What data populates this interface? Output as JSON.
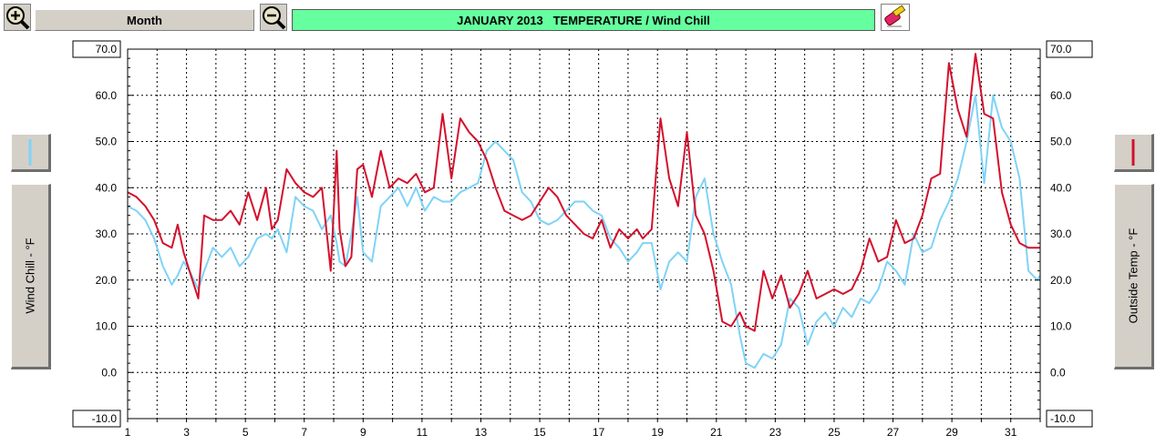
{
  "toolbar": {
    "zoom_in_icon": "zoom-in-magnifier-plus",
    "zoom_out_icon": "zoom-out-magnifier-minus",
    "period_label": "Month",
    "title": "JANUARY 2013   TEMPERATURE / Wind Chill",
    "title_bg": "#66ff9f",
    "tool_icon": "eraser-pencil-icon"
  },
  "left_axis": {
    "label": "Wind Chill - °F",
    "color": "#7fd3f7"
  },
  "right_axis": {
    "label": "Outside Temp - °F",
    "color": "#d4102c"
  },
  "chart_data": {
    "type": "line",
    "title": "JANUARY 2013   TEMPERATURE / Wind Chill",
    "xlabel": "",
    "ylabel_left": "Wind Chill - °F",
    "ylabel_right": "Outside Temp - °F",
    "xlim": [
      1,
      32
    ],
    "ylim": [
      -10,
      70
    ],
    "x_ticks": [
      "1",
      "3",
      "5",
      "7",
      "9",
      "11",
      "13",
      "15",
      "17",
      "19",
      "21",
      "23",
      "25",
      "27",
      "29",
      "31"
    ],
    "y_ticks": [
      "70.0",
      "60.0",
      "50.0",
      "40.0",
      "30.0",
      "20.0",
      "10.0",
      "0.0",
      "-10.0"
    ],
    "grid": true,
    "series": [
      {
        "name": "Wind Chill",
        "color": "#7fd3f7",
        "x": [
          1,
          1.3,
          1.6,
          1.9,
          2.2,
          2.5,
          2.7,
          2.9,
          3.1,
          3.4,
          3.6,
          3.9,
          4.2,
          4.5,
          4.8,
          5.1,
          5.4,
          5.7,
          5.9,
          6.1,
          6.4,
          6.7,
          7.0,
          7.3,
          7.6,
          7.9,
          8.1,
          8.2,
          8.4,
          8.6,
          8.8,
          9.0,
          9.3,
          9.6,
          9.9,
          10.2,
          10.5,
          10.8,
          11.1,
          11.4,
          11.7,
          12.0,
          12.3,
          12.6,
          12.9,
          13.2,
          13.5,
          13.8,
          14.1,
          14.4,
          14.7,
          15.0,
          15.3,
          15.6,
          15.9,
          16.2,
          16.5,
          16.8,
          17.1,
          17.4,
          17.7,
          18.0,
          18.3,
          18.5,
          18.8,
          19.1,
          19.4,
          19.7,
          20.0,
          20.3,
          20.6,
          20.9,
          21.2,
          21.5,
          21.8,
          22.0,
          22.3,
          22.6,
          22.9,
          23.2,
          23.5,
          23.8,
          24.1,
          24.4,
          24.7,
          25.0,
          25.3,
          25.6,
          25.9,
          26.2,
          26.5,
          26.8,
          27.1,
          27.4,
          27.7,
          28.0,
          28.3,
          28.6,
          28.9,
          29.2,
          29.5,
          29.8,
          30.1,
          30.4,
          30.7,
          31.0,
          31.3,
          31.6,
          31.9,
          32
        ],
        "y": [
          36,
          35,
          33,
          29,
          23,
          19,
          21,
          24,
          22,
          18,
          22,
          27,
          25,
          27,
          23,
          25,
          29,
          30,
          29,
          31,
          26,
          38,
          36,
          35,
          31,
          34,
          28,
          24,
          23,
          30,
          38,
          26,
          24,
          36,
          38,
          40,
          36,
          40,
          35,
          38,
          37,
          37,
          39,
          40,
          41,
          48,
          50,
          48,
          46,
          39,
          37,
          33,
          32,
          33,
          35,
          37,
          37,
          35,
          34,
          29,
          27,
          24,
          26,
          28,
          28,
          18,
          24,
          26,
          24,
          38,
          42,
          30,
          24,
          19,
          8,
          2,
          1,
          4,
          3,
          6,
          16,
          14,
          6,
          11,
          13,
          10,
          14,
          12,
          16,
          15,
          18,
          24,
          22,
          19,
          30,
          26,
          27,
          33,
          37,
          42,
          50,
          60,
          41,
          60,
          53,
          50,
          42,
          22,
          20,
          21
        ]
      },
      {
        "name": "Outside Temp",
        "color": "#d4102c",
        "x": [
          1,
          1.3,
          1.6,
          1.9,
          2.2,
          2.5,
          2.7,
          2.9,
          3.1,
          3.4,
          3.6,
          3.9,
          4.2,
          4.5,
          4.8,
          5.1,
          5.4,
          5.7,
          5.9,
          6.1,
          6.4,
          6.7,
          7.0,
          7.3,
          7.6,
          7.9,
          8.1,
          8.2,
          8.4,
          8.6,
          8.8,
          9.0,
          9.3,
          9.6,
          9.9,
          10.2,
          10.5,
          10.8,
          11.1,
          11.4,
          11.7,
          12.0,
          12.3,
          12.6,
          12.9,
          13.2,
          13.5,
          13.8,
          14.1,
          14.4,
          14.7,
          15.0,
          15.3,
          15.6,
          15.9,
          16.2,
          16.5,
          16.8,
          17.1,
          17.4,
          17.7,
          18.0,
          18.3,
          18.5,
          18.8,
          19.1,
          19.4,
          19.7,
          20.0,
          20.3,
          20.6,
          20.9,
          21.2,
          21.5,
          21.8,
          22.0,
          22.3,
          22.6,
          22.9,
          23.2,
          23.5,
          23.8,
          24.1,
          24.4,
          24.7,
          25.0,
          25.3,
          25.6,
          25.9,
          26.2,
          26.5,
          26.8,
          27.1,
          27.4,
          27.7,
          28.0,
          28.3,
          28.6,
          28.9,
          29.2,
          29.5,
          29.8,
          30.1,
          30.4,
          30.7,
          31.0,
          31.3,
          31.6,
          31.9,
          32
        ],
        "y": [
          39,
          38,
          36,
          33,
          28,
          27,
          32,
          26,
          22,
          16,
          34,
          33,
          33,
          35,
          32,
          39,
          33,
          40,
          31,
          33,
          44,
          41,
          39,
          38,
          40,
          22,
          48,
          31,
          23,
          25,
          44,
          45,
          38,
          48,
          40,
          42,
          41,
          43,
          39,
          40,
          56,
          42,
          55,
          52,
          50,
          46,
          40,
          35,
          34,
          33,
          34,
          37,
          40,
          38,
          34,
          32,
          30,
          29,
          33,
          27,
          31,
          29,
          31,
          29,
          31,
          55,
          42,
          36,
          52,
          34,
          30,
          22,
          11,
          10,
          13,
          10,
          9,
          22,
          16,
          21,
          14,
          17,
          22,
          16,
          17,
          18,
          17,
          18,
          22,
          29,
          24,
          25,
          33,
          28,
          29,
          34,
          42,
          43,
          67,
          57,
          51,
          69,
          56,
          55,
          39,
          32,
          28,
          27,
          27,
          27
        ]
      }
    ]
  }
}
